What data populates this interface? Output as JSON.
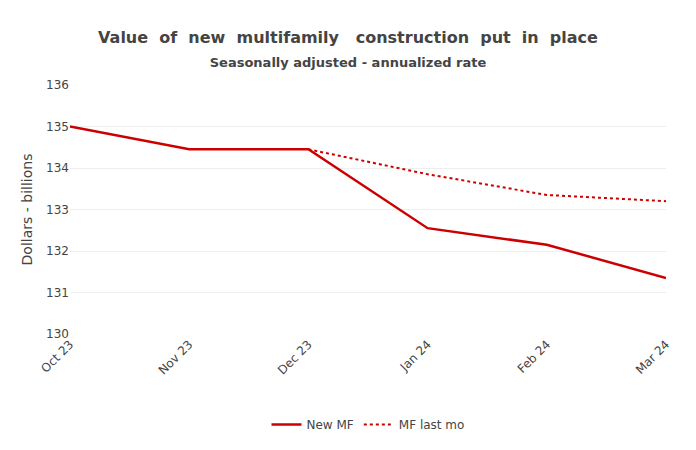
{
  "chart_data": {
    "type": "line",
    "title": "Value  of  new  multifamily   construction  put  in  place",
    "subtitle": "Seasonally adjusted - annualized rate",
    "y_label": "Dollars - billions",
    "categories": [
      "Oct 23",
      "Nov 23",
      "Dec 23",
      "Jan 24",
      "Feb 24",
      "Mar 24"
    ],
    "series": [
      {
        "name": "New MF",
        "color": "#cc0000",
        "line_style": "solid",
        "values": [
          135.0,
          134.45,
          134.45,
          132.55,
          132.15,
          131.35
        ]
      },
      {
        "name": "MF last mo",
        "color": "#cc0000",
        "line_style": "dotted",
        "values": [
          null,
          null,
          134.45,
          133.85,
          133.35,
          133.2
        ]
      }
    ],
    "ylim": [
      130,
      136
    ],
    "yticks": [
      130,
      131,
      132,
      133,
      134,
      135,
      136
    ],
    "grid": true,
    "legend": "bottom"
  }
}
